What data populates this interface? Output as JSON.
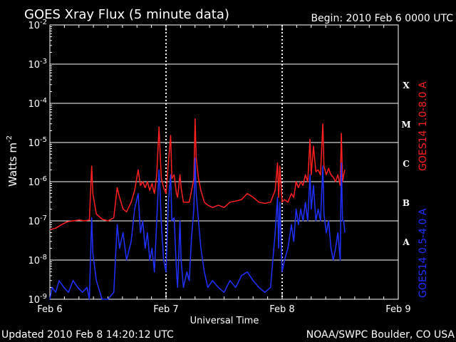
{
  "header": {
    "title": "GOES Xray Flux (5 minute data)",
    "begin": "Begin:  2010 Feb 6 0000 UTC"
  },
  "footer": {
    "updated": "Updated 2010 Feb  8 14:20:12 UTC",
    "credit": "NOAA/SWPC Boulder, CO USA"
  },
  "chart_data": {
    "type": "line",
    "title": "GOES Xray Flux (5 minute data)",
    "xlabel": "Universal Time",
    "ylabel": "Watts m",
    "ylabel_sup": "-2",
    "y_scale": "log",
    "ylim": [
      1e-09,
      0.01
    ],
    "xlim_days": [
      "Feb 6",
      "Feb 9"
    ],
    "y_ticks": [
      {
        "base": "10",
        "exp": "-9",
        "value": 1e-09
      },
      {
        "base": "10",
        "exp": "-8",
        "value": 1e-08
      },
      {
        "base": "10",
        "exp": "-7",
        "value": 1e-07
      },
      {
        "base": "10",
        "exp": "-6",
        "value": 1e-06
      },
      {
        "base": "10",
        "exp": "-5",
        "value": 1e-05
      },
      {
        "base": "10",
        "exp": "-4",
        "value": 0.0001
      },
      {
        "base": "10",
        "exp": "-3",
        "value": 0.001
      },
      {
        "base": "10",
        "exp": "-2",
        "value": 0.01
      }
    ],
    "x_ticks": [
      "Feb 6",
      "Feb 7",
      "Feb 8",
      "Feb 9"
    ],
    "flare_classes": [
      {
        "label": "X",
        "value": 0.0003
      },
      {
        "label": "M",
        "value": 3e-05
      },
      {
        "label": "C",
        "value": 3e-06
      },
      {
        "label": "B",
        "value": 3e-07
      },
      {
        "label": "A",
        "value": 3e-08
      }
    ],
    "grid": true,
    "series": [
      {
        "name": "GOES14 1.0-8.0 A",
        "color": "#ff2020",
        "points": [
          [
            0.0,
            6e-08
          ],
          [
            0.05,
            6.5e-08
          ],
          [
            0.1,
            8e-08
          ],
          [
            0.15,
            9.5e-08
          ],
          [
            0.2,
            1e-07
          ],
          [
            0.25,
            1.05e-07
          ],
          [
            0.3,
            1e-07
          ],
          [
            0.34,
            1.05e-07
          ],
          [
            0.36,
            2.5e-06
          ],
          [
            0.37,
            5e-07
          ],
          [
            0.4,
            1.5e-07
          ],
          [
            0.45,
            1.1e-07
          ],
          [
            0.5,
            1e-07
          ],
          [
            0.55,
            1.2e-07
          ],
          [
            0.58,
            7e-07
          ],
          [
            0.6,
            4e-07
          ],
          [
            0.63,
            2e-07
          ],
          [
            0.66,
            1.7e-07
          ],
          [
            0.7,
            3e-07
          ],
          [
            0.73,
            6e-07
          ],
          [
            0.76,
            2e-06
          ],
          [
            0.78,
            8e-07
          ],
          [
            0.8,
            1e-06
          ],
          [
            0.82,
            7e-07
          ],
          [
            0.84,
            1e-06
          ],
          [
            0.86,
            6e-07
          ],
          [
            0.88,
            9e-07
          ],
          [
            0.9,
            5e-07
          ],
          [
            0.92,
            1.5e-06
          ],
          [
            0.94,
            2.5e-05
          ],
          [
            0.95,
            5e-06
          ],
          [
            0.96,
            1.2e-06
          ],
          [
            0.98,
            7e-07
          ],
          [
            1.0,
            5e-07
          ],
          [
            1.02,
            3e-06
          ],
          [
            1.04,
            1.5e-05
          ],
          [
            1.05,
            1.2e-06
          ],
          [
            1.07,
            1.5e-06
          ],
          [
            1.09,
            5e-07
          ],
          [
            1.1,
            4e-07
          ],
          [
            1.12,
            1.5e-06
          ],
          [
            1.13,
            7e-07
          ],
          [
            1.15,
            3e-07
          ],
          [
            1.18,
            3e-07
          ],
          [
            1.2,
            3e-07
          ],
          [
            1.22,
            6e-07
          ],
          [
            1.24,
            1.2e-06
          ],
          [
            1.25,
            4e-05
          ],
          [
            1.26,
            4e-06
          ],
          [
            1.28,
            1.2e-06
          ],
          [
            1.3,
            6e-07
          ],
          [
            1.33,
            3e-07
          ],
          [
            1.36,
            2.5e-07
          ],
          [
            1.4,
            2.2e-07
          ],
          [
            1.45,
            2.5e-07
          ],
          [
            1.5,
            2.2e-07
          ],
          [
            1.55,
            3e-07
          ],
          [
            1.6,
            3.2e-07
          ],
          [
            1.65,
            3.5e-07
          ],
          [
            1.7,
            5e-07
          ],
          [
            1.75,
            4e-07
          ],
          [
            1.8,
            3e-07
          ],
          [
            1.85,
            2.8e-07
          ],
          [
            1.9,
            3e-07
          ],
          [
            1.94,
            6e-07
          ],
          [
            1.96,
            3e-06
          ],
          [
            1.97,
            4e-07
          ],
          [
            1.98,
            2.5e-06
          ],
          [
            2.0,
            3e-07
          ],
          [
            2.02,
            3.5e-07
          ],
          [
            2.05,
            3e-07
          ],
          [
            2.08,
            5e-07
          ],
          [
            2.1,
            4e-07
          ],
          [
            2.12,
            1e-06
          ],
          [
            2.14,
            7e-07
          ],
          [
            2.16,
            1e-06
          ],
          [
            2.18,
            8e-07
          ],
          [
            2.2,
            1.5e-06
          ],
          [
            2.22,
            1e-06
          ],
          [
            2.24,
            1.2e-05
          ],
          [
            2.25,
            1.5e-06
          ],
          [
            2.27,
            8e-06
          ],
          [
            2.29,
            1.8e-06
          ],
          [
            2.31,
            2e-06
          ],
          [
            2.33,
            1.5e-06
          ],
          [
            2.35,
            3e-05
          ],
          [
            2.36,
            2.5e-06
          ],
          [
            2.38,
            1.5e-06
          ],
          [
            2.4,
            2.2e-06
          ],
          [
            2.42,
            1.5e-06
          ],
          [
            2.44,
            1.3e-06
          ],
          [
            2.46,
            1e-06
          ],
          [
            2.48,
            1.5e-06
          ],
          [
            2.5,
            8e-07
          ],
          [
            2.51,
            1.7e-05
          ],
          [
            2.52,
            1e-06
          ],
          [
            2.53,
            1.5e-06
          ],
          [
            2.54,
            2e-06
          ]
        ]
      },
      {
        "name": "GOES14 0.5-4.0 A",
        "color": "#2030ff",
        "points": [
          [
            0.0,
            1e-09
          ],
          [
            0.02,
            2e-09
          ],
          [
            0.05,
            1.5e-09
          ],
          [
            0.08,
            3e-09
          ],
          [
            0.12,
            2e-09
          ],
          [
            0.16,
            1.5e-09
          ],
          [
            0.2,
            3e-09
          ],
          [
            0.24,
            2e-09
          ],
          [
            0.28,
            1.5e-09
          ],
          [
            0.32,
            2e-09
          ],
          [
            0.34,
            1e-09
          ],
          [
            0.36,
            1.2e-07
          ],
          [
            0.37,
            1.5e-08
          ],
          [
            0.4,
            3e-09
          ],
          [
            0.45,
            1e-09
          ],
          [
            0.5,
            1e-09
          ],
          [
            0.55,
            1.5e-09
          ],
          [
            0.58,
            8e-08
          ],
          [
            0.6,
            2e-08
          ],
          [
            0.63,
            5e-08
          ],
          [
            0.66,
            1e-08
          ],
          [
            0.7,
            3e-08
          ],
          [
            0.73,
            2e-07
          ],
          [
            0.76,
            5e-07
          ],
          [
            0.78,
            5e-08
          ],
          [
            0.8,
            1e-07
          ],
          [
            0.82,
            2e-08
          ],
          [
            0.84,
            5e-08
          ],
          [
            0.86,
            1e-08
          ],
          [
            0.88,
            2e-08
          ],
          [
            0.9,
            5e-09
          ],
          [
            0.92,
            1e-07
          ],
          [
            0.94,
            2e-06
          ],
          [
            0.95,
            5e-07
          ],
          [
            0.96,
            8e-08
          ],
          [
            0.98,
            1e-08
          ],
          [
            1.0,
            5e-09
          ],
          [
            1.02,
            3e-07
          ],
          [
            1.04,
            1.5e-06
          ],
          [
            1.05,
            1e-07
          ],
          [
            1.07,
            1.2e-07
          ],
          [
            1.09,
            5e-09
          ],
          [
            1.1,
            2e-09
          ],
          [
            1.12,
            1e-07
          ],
          [
            1.13,
            1e-08
          ],
          [
            1.15,
            2e-09
          ],
          [
            1.18,
            5e-09
          ],
          [
            1.2,
            3e-09
          ],
          [
            1.22,
            4e-08
          ],
          [
            1.24,
            2e-07
          ],
          [
            1.25,
            4e-06
          ],
          [
            1.26,
            5e-07
          ],
          [
            1.28,
            1e-07
          ],
          [
            1.3,
            2e-08
          ],
          [
            1.33,
            5e-09
          ],
          [
            1.36,
            2e-09
          ],
          [
            1.4,
            3e-09
          ],
          [
            1.45,
            2e-09
          ],
          [
            1.5,
            1.5e-09
          ],
          [
            1.55,
            3e-09
          ],
          [
            1.6,
            2e-09
          ],
          [
            1.65,
            4e-09
          ],
          [
            1.7,
            5e-09
          ],
          [
            1.75,
            3e-09
          ],
          [
            1.8,
            2e-09
          ],
          [
            1.85,
            1.5e-09
          ],
          [
            1.9,
            2e-09
          ],
          [
            1.94,
            5e-08
          ],
          [
            1.96,
            4e-07
          ],
          [
            1.97,
            2e-08
          ],
          [
            1.98,
            3e-07
          ],
          [
            2.0,
            5e-09
          ],
          [
            2.02,
            1e-08
          ],
          [
            2.05,
            2e-08
          ],
          [
            2.08,
            8e-08
          ],
          [
            2.1,
            3e-08
          ],
          [
            2.12,
            2e-07
          ],
          [
            2.14,
            8e-08
          ],
          [
            2.16,
            2e-07
          ],
          [
            2.18,
            1e-07
          ],
          [
            2.2,
            3e-07
          ],
          [
            2.22,
            1e-07
          ],
          [
            2.24,
            1.5e-06
          ],
          [
            2.25,
            2e-07
          ],
          [
            2.27,
            8e-07
          ],
          [
            2.29,
            1e-07
          ],
          [
            2.31,
            2e-07
          ],
          [
            2.33,
            1e-07
          ],
          [
            2.35,
            2.5e-06
          ],
          [
            2.36,
            1.5e-07
          ],
          [
            2.38,
            5e-08
          ],
          [
            2.4,
            1e-07
          ],
          [
            2.42,
            2e-08
          ],
          [
            2.44,
            1e-08
          ],
          [
            2.46,
            2e-08
          ],
          [
            2.48,
            5e-08
          ],
          [
            2.5,
            1e-08
          ],
          [
            2.51,
            3e-06
          ],
          [
            2.52,
            1e-07
          ],
          [
            2.53,
            1e-07
          ],
          [
            2.54,
            5e-08
          ]
        ]
      }
    ]
  }
}
